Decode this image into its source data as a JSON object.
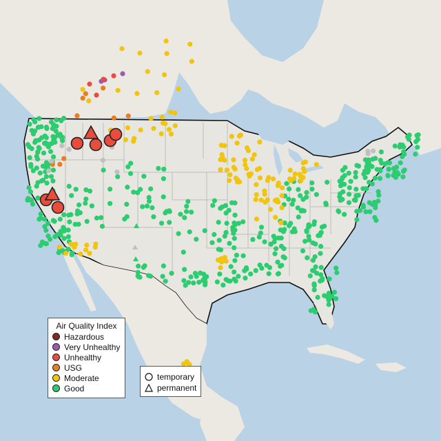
{
  "legend": {
    "title": "Air Quality Index",
    "categories": [
      {
        "label": "Hazardous",
        "color": "#7e2b22"
      },
      {
        "label": "Very Unhealthy",
        "color": "#9b59b6"
      },
      {
        "label": "Unhealthy",
        "color": "#e74c3c"
      },
      {
        "label": "USG",
        "color": "#e67e22"
      },
      {
        "label": "Moderate",
        "color": "#f1c40f"
      },
      {
        "label": "Good",
        "color": "#2ecc71"
      }
    ]
  },
  "shape_legend": {
    "temporary_label": "temporary",
    "permanent_label": "permanent"
  },
  "colors": {
    "water": "#b9d2e6",
    "land_us": "#e8e6e1",
    "land_other": "#ece8e2",
    "state_border": "#b3b3b3",
    "country_border": "#111111",
    "no_data": "#c0c0c0"
  }
}
